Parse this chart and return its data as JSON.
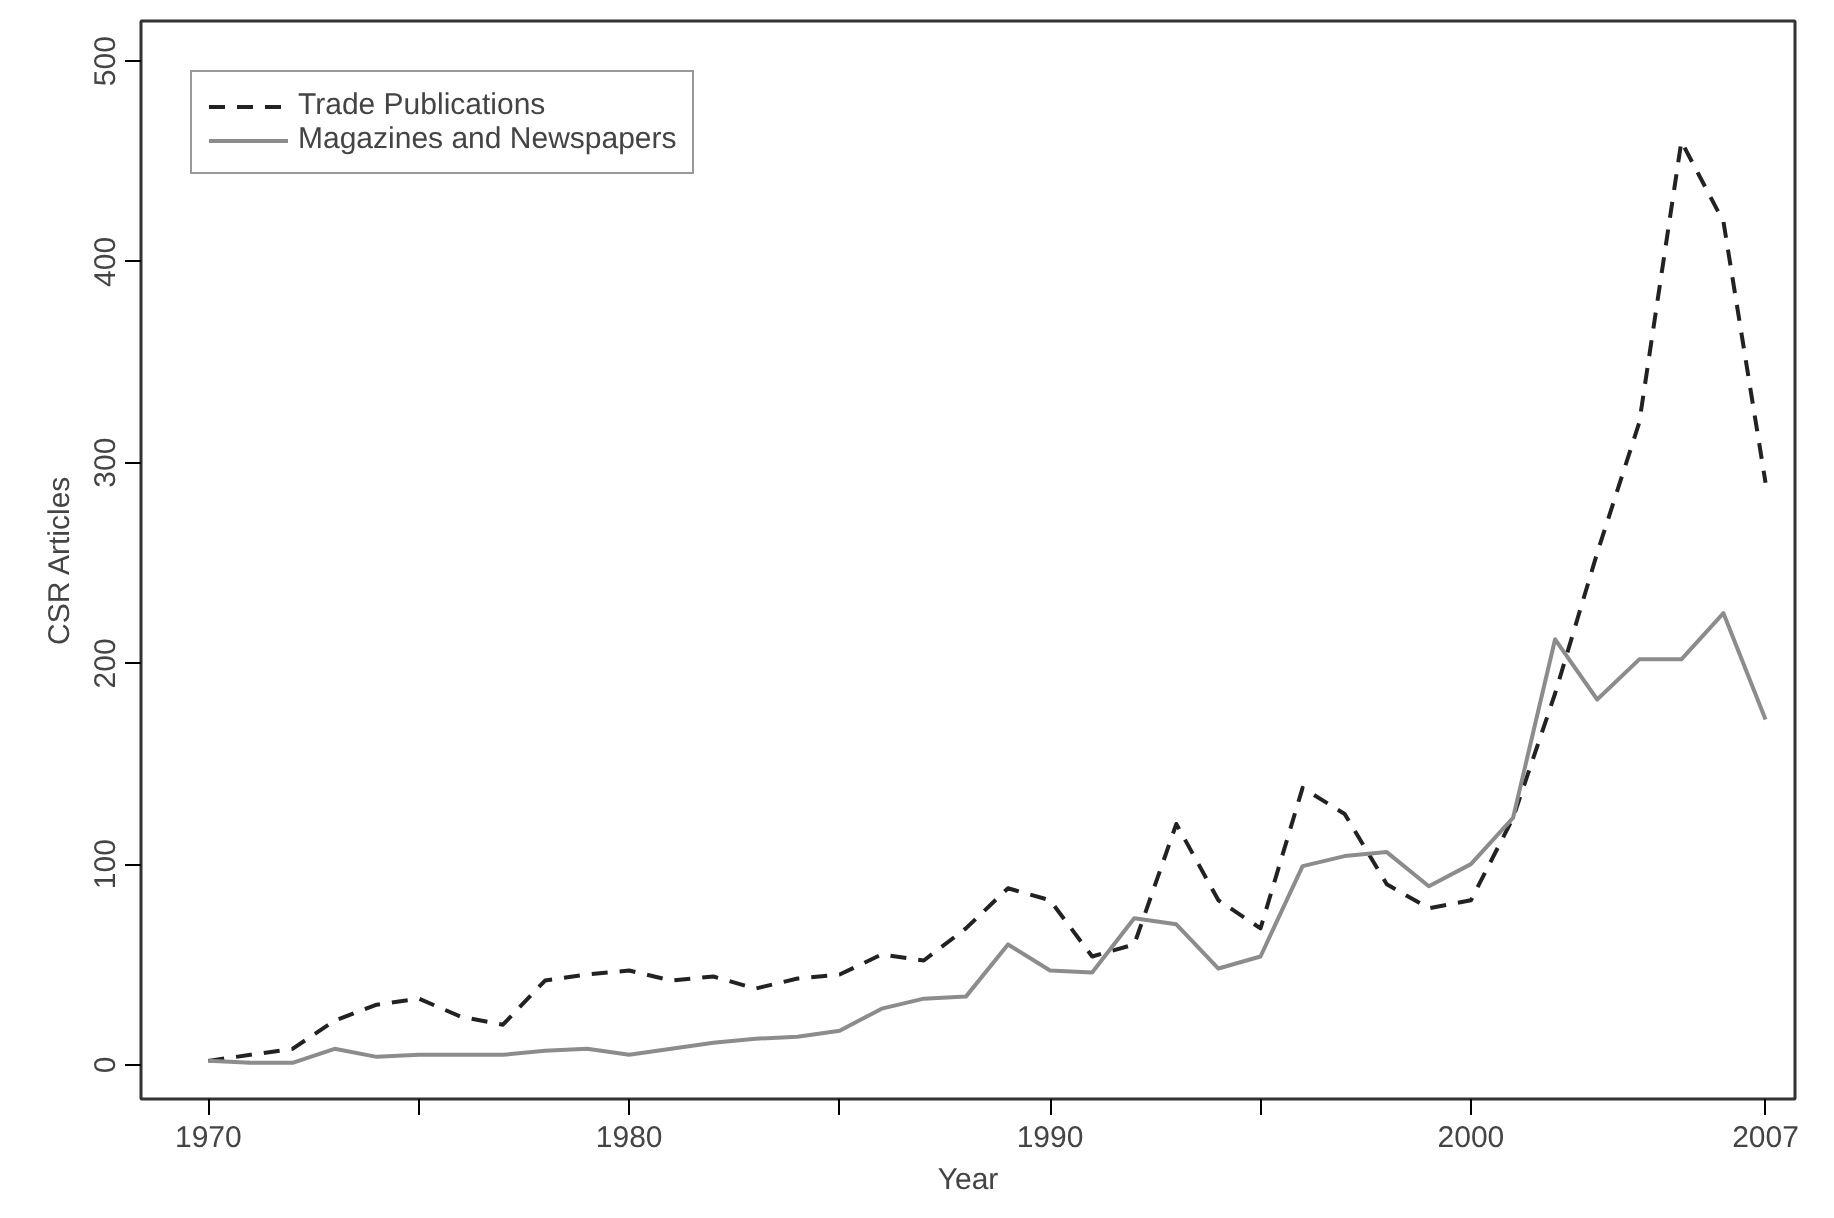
{
  "chart_data": {
    "type": "line",
    "xlabel": "Year",
    "ylabel": "CSR Articles",
    "x": [
      1970,
      1971,
      1972,
      1973,
      1974,
      1975,
      1976,
      1977,
      1978,
      1979,
      1980,
      1981,
      1982,
      1983,
      1984,
      1985,
      1986,
      1987,
      1988,
      1989,
      1990,
      1991,
      1992,
      1993,
      1994,
      1995,
      1996,
      1997,
      1998,
      1999,
      2000,
      2001,
      2002,
      2003,
      2004,
      2005,
      2006,
      2007
    ],
    "series": [
      {
        "name": "Trade Publications",
        "color": "#222222",
        "line_style": "dashed",
        "values": [
          2,
          5,
          8,
          22,
          30,
          33,
          24,
          20,
          42,
          45,
          47,
          42,
          44,
          38,
          43,
          45,
          55,
          52,
          68,
          88,
          82,
          54,
          60,
          120,
          82,
          68,
          138,
          125,
          90,
          78,
          82,
          123,
          185,
          255,
          320,
          460,
          420,
          290
        ]
      },
      {
        "name": "Magazines and Newspapers",
        "color": "#8c8c8c",
        "line_style": "solid",
        "values": [
          2,
          1,
          1,
          8,
          4,
          5,
          5,
          5,
          7,
          8,
          5,
          8,
          11,
          13,
          14,
          17,
          28,
          33,
          34,
          60,
          47,
          46,
          73,
          70,
          48,
          54,
          99,
          104,
          106,
          89,
          100,
          123,
          212,
          182,
          202,
          202,
          225,
          172
        ]
      }
    ],
    "xlim": [
      1968.4,
      2007.7
    ],
    "ylim": [
      -17,
      520
    ],
    "xticks": [
      1970,
      {
        "value": 1975,
        "label": null
      },
      1980,
      {
        "value": 1985,
        "label": null
      },
      1990,
      {
        "value": 1995,
        "label": null
      },
      2000,
      2007
    ],
    "yticks": [
      0,
      100,
      200,
      300,
      400,
      500
    ],
    "grid": false,
    "legend": "top left",
    "marker": "none"
  }
}
